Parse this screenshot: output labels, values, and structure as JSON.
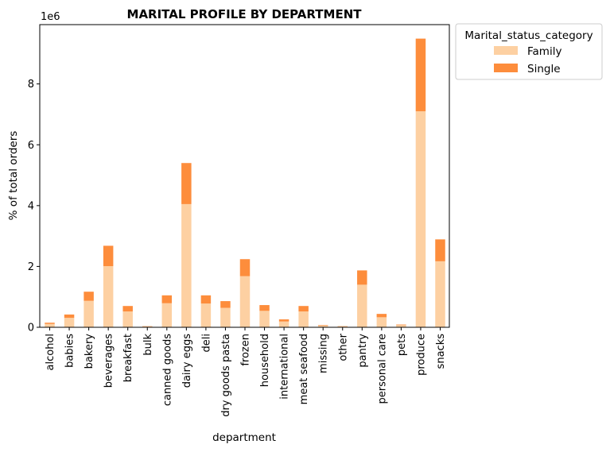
{
  "chart_data": {
    "type": "bar",
    "stacked": true,
    "title": "MARITAL PROFILE BY DEPARTMENT",
    "xlabel": "department",
    "ylabel": "% of total orders",
    "offset_label": "1e6",
    "ylim": [
      0,
      9.95
    ],
    "yticks": [
      "0",
      "2",
      "4",
      "6",
      "8"
    ],
    "grid": false,
    "legend": {
      "title": "Marital_status_category",
      "placement": "outside-top-right"
    },
    "categories": [
      "alcohol",
      "babies",
      "bakery",
      "beverages",
      "breakfast",
      "bulk",
      "canned goods",
      "dairy eggs",
      "deli",
      "dry goods pasta",
      "frozen",
      "household",
      "international",
      "meat seafood",
      "missing",
      "other",
      "pantry",
      "personal care",
      "pets",
      "produce",
      "snacks"
    ],
    "series": [
      {
        "name": "Family",
        "color": "#fdd0a2",
        "values": [
          0.11,
          0.31,
          0.87,
          2.01,
          0.52,
          0.025,
          0.79,
          4.05,
          0.78,
          0.64,
          1.68,
          0.54,
          0.19,
          0.52,
          0.05,
          0.028,
          1.4,
          0.33,
          0.07,
          7.1,
          2.17
        ]
      },
      {
        "name": "Single",
        "color": "#fd8d3c",
        "values": [
          0.04,
          0.11,
          0.3,
          0.67,
          0.18,
          0.01,
          0.26,
          1.35,
          0.27,
          0.22,
          0.56,
          0.19,
          0.07,
          0.18,
          0.02,
          0.009,
          0.47,
          0.11,
          0.02,
          2.39,
          0.72
        ]
      }
    ]
  }
}
